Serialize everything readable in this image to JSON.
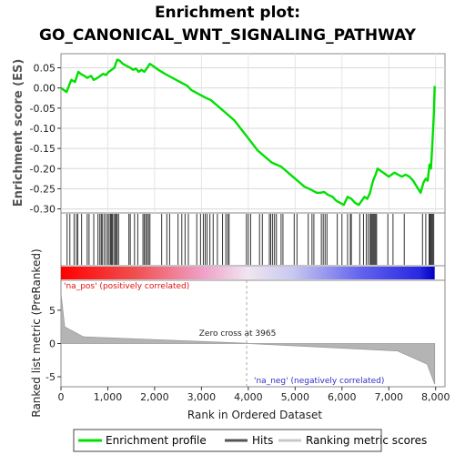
{
  "chart_data": {
    "type": "line",
    "title_line1": "Enrichment plot:",
    "title_line2": "GO_CANONICAL_WNT_SIGNALING_PATHWAY",
    "es_ylabel": "Enrichment score (ES)",
    "metric_ylabel": "Ranked list metric (PreRanked)",
    "xlabel": "Rank in Ordered Dataset",
    "xlim": [
      0,
      8200
    ],
    "x_ticks": [
      0,
      1000,
      2000,
      3000,
      4000,
      5000,
      6000,
      7000,
      8000
    ],
    "x_tick_labels": [
      "0",
      "1,000",
      "2,000",
      "3,000",
      "4,000",
      "5,000",
      "6,000",
      "7,000",
      "8,000"
    ],
    "es_ylim": [
      -0.31,
      0.085
    ],
    "es_ticks": [
      0.05,
      0.0,
      -0.05,
      -0.1,
      -0.15,
      -0.2,
      -0.25,
      -0.3
    ],
    "es_tick_labels": [
      "0.05",
      "0.00",
      "-0.05",
      "-0.10",
      "-0.15",
      "-0.20",
      "-0.25",
      "-0.30"
    ],
    "metric_ylim": [
      -6.5,
      9.5
    ],
    "metric_ticks": [
      5,
      0,
      -5
    ],
    "metric_tick_labels": [
      "5",
      "0",
      "-5"
    ],
    "zero_cross": 3965,
    "zero_cross_label": "Zero cross at 3965",
    "pos_label": "'na_pos' (positively correlated)",
    "neg_label": "'na_neg' (negatively correlated)",
    "n_genes": 7980,
    "series": [
      {
        "name": "Enrichment profile",
        "color": "#00e000",
        "x": [
          0,
          120,
          170,
          220,
          300,
          370,
          420,
          500,
          560,
          640,
          700,
          780,
          840,
          900,
          960,
          1020,
          1080,
          1140,
          1200,
          1250,
          1320,
          1400,
          1480,
          1540,
          1600,
          1660,
          1720,
          1780,
          1840,
          1900,
          1960,
          2020,
          2080,
          2150,
          2220,
          2300,
          2380,
          2460,
          2540,
          2620,
          2700,
          2780,
          2860,
          2940,
          3020,
          3100,
          3200,
          3300,
          3400,
          3500,
          3600,
          3700,
          3800,
          3900,
          4000,
          4100,
          4200,
          4300,
          4400,
          4500,
          4600,
          4700,
          4800,
          4900,
          5000,
          5100,
          5200,
          5300,
          5380,
          5460,
          5540,
          5620,
          5700,
          5800,
          5880,
          5960,
          6040,
          6120,
          6200,
          6280,
          6360,
          6420,
          6480,
          6540,
          6600,
          6640,
          6680,
          6720,
          6760,
          6820,
          6880,
          6940,
          7000,
          7060,
          7120,
          7200,
          7280,
          7360,
          7440,
          7520,
          7600,
          7680,
          7740,
          7790,
          7830,
          7870,
          7900,
          7930,
          7960,
          7980
        ],
        "y": [
          0.0,
          -0.01,
          0.005,
          0.02,
          0.015,
          0.04,
          0.035,
          0.03,
          0.025,
          0.03,
          0.02,
          0.025,
          0.03,
          0.035,
          0.032,
          0.04,
          0.045,
          0.05,
          0.07,
          0.068,
          0.06,
          0.055,
          0.05,
          0.045,
          0.048,
          0.04,
          0.045,
          0.04,
          0.05,
          0.06,
          0.055,
          0.05,
          0.045,
          0.04,
          0.035,
          0.03,
          0.025,
          0.02,
          0.015,
          0.01,
          0.005,
          -0.005,
          -0.01,
          -0.015,
          -0.02,
          -0.025,
          -0.03,
          -0.04,
          -0.05,
          -0.06,
          -0.07,
          -0.08,
          -0.095,
          -0.11,
          -0.125,
          -0.14,
          -0.155,
          -0.165,
          -0.175,
          -0.185,
          -0.19,
          -0.195,
          -0.205,
          -0.215,
          -0.225,
          -0.235,
          -0.245,
          -0.25,
          -0.255,
          -0.26,
          -0.26,
          -0.258,
          -0.265,
          -0.27,
          -0.28,
          -0.285,
          -0.29,
          -0.27,
          -0.275,
          -0.285,
          -0.29,
          -0.28,
          -0.27,
          -0.275,
          -0.26,
          -0.24,
          -0.225,
          -0.215,
          -0.2,
          -0.205,
          -0.21,
          -0.215,
          -0.22,
          -0.215,
          -0.21,
          -0.215,
          -0.22,
          -0.215,
          -0.22,
          -0.23,
          -0.245,
          -0.26,
          -0.235,
          -0.225,
          -0.23,
          -0.19,
          -0.2,
          -0.14,
          -0.07,
          0.005
        ]
      }
    ],
    "hits": [
      130,
      190,
      280,
      330,
      360,
      440,
      560,
      600,
      700,
      790,
      830,
      860,
      880,
      920,
      960,
      1000,
      1030,
      1060,
      1080,
      1100,
      1130,
      1160,
      1180,
      1200,
      1230,
      1450,
      1480,
      1570,
      1640,
      1750,
      1780,
      1810,
      1840,
      1870,
      1900,
      2150,
      2260,
      2320,
      2500,
      2580,
      2650,
      2720,
      2900,
      2980,
      3040,
      3080,
      3120,
      3180,
      3250,
      3340,
      3450,
      3520,
      3560,
      3590,
      3960,
      4000,
      4050,
      4240,
      4300,
      4450,
      4480,
      4520,
      4560,
      4600,
      4700,
      4740,
      4980,
      5040,
      5280,
      5360,
      5400,
      5560,
      5600,
      5640,
      5680,
      5900,
      6000,
      6120,
      6180,
      6200,
      6380,
      6460,
      6520,
      6560,
      6600,
      6620,
      6640,
      6660,
      6680,
      6700,
      6720,
      6740,
      6980,
      7090,
      7330,
      7720,
      7790,
      7860,
      7880,
      7900,
      7920,
      7940,
      7960
    ]
  },
  "legend": {
    "items": [
      {
        "label": "Enrichment profile",
        "color": "#00e000"
      },
      {
        "label": "Hits",
        "color": "#555555"
      },
      {
        "label": "Ranking metric scores",
        "color": "#c8c8c8"
      }
    ]
  }
}
